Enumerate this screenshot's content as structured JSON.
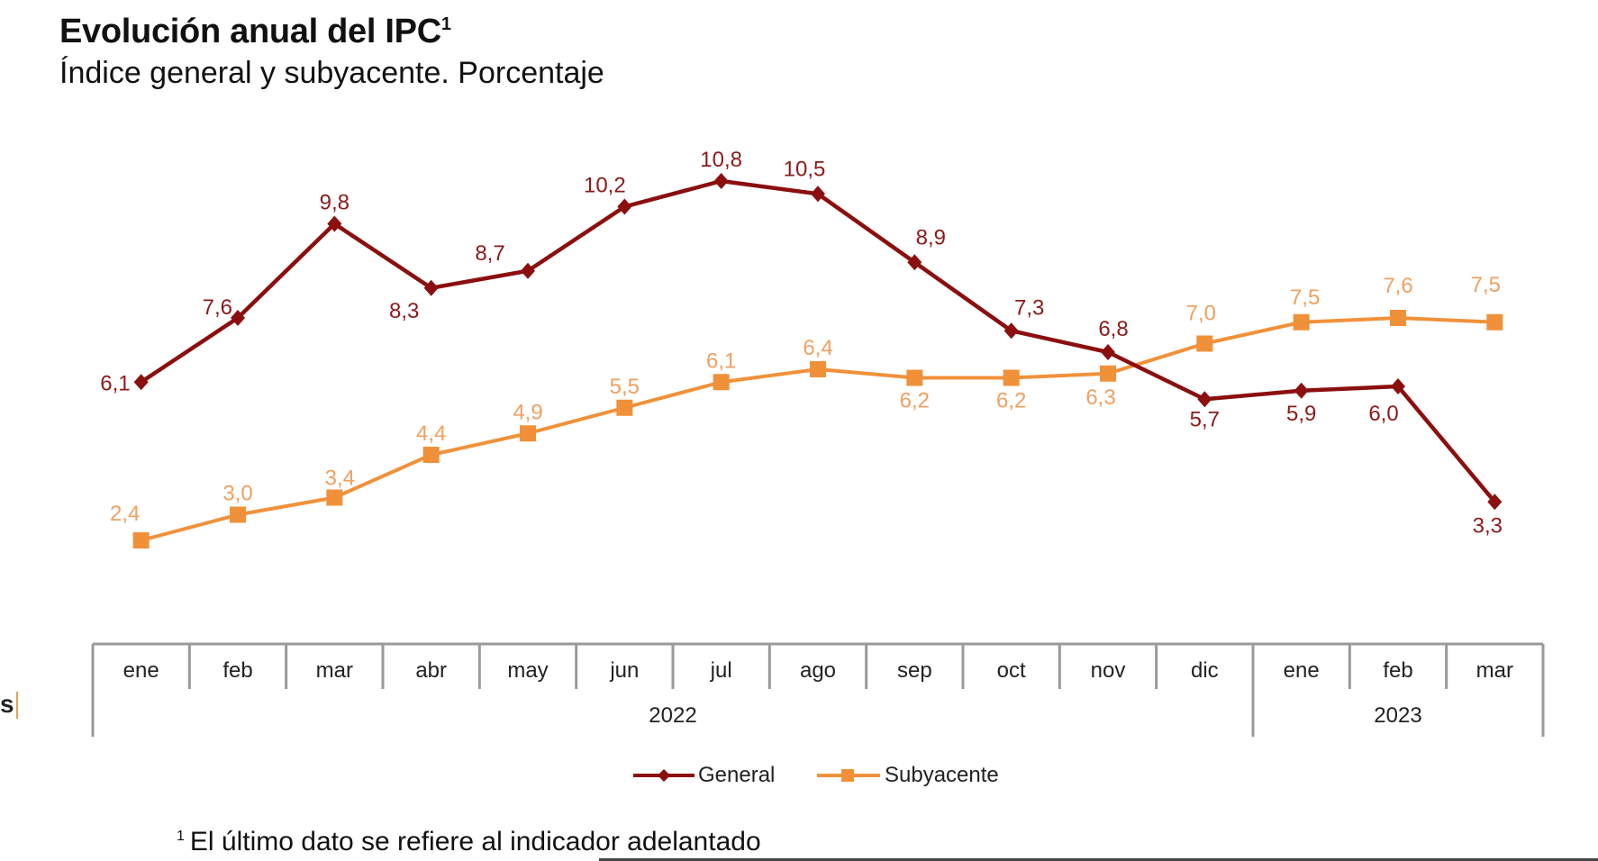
{
  "header": {
    "title": "Evolución anual del IPC",
    "title_sup": "1",
    "subtitle": "Índice general y subyacente. Porcentaje"
  },
  "edge_fragment": "s",
  "footnote": {
    "marker": "1",
    "text": "El último dato se refiere al indicador adelantado"
  },
  "colors": {
    "general": "#8B0F0F",
    "subyacente": "#F0913A",
    "general_label": "#8B1A1A",
    "subyacente_label": "#F0A060",
    "axis": "#9a9a9a"
  },
  "chart_data": {
    "type": "line",
    "title": "Evolución anual del IPC",
    "subtitle": "Índice general y subyacente. Porcentaje",
    "xlabel": "",
    "ylabel": "",
    "ylim": [
      0,
      11
    ],
    "grid": false,
    "legend_position": "bottom-center",
    "categories": [
      "ene",
      "feb",
      "mar",
      "abr",
      "may",
      "jun",
      "jul",
      "ago",
      "sep",
      "oct",
      "nov",
      "dic",
      "ene",
      "feb",
      "mar"
    ],
    "year_groups": [
      {
        "label": "2022",
        "count": 12
      },
      {
        "label": "2023",
        "count": 3
      }
    ],
    "series": [
      {
        "name": "General",
        "marker": "diamond",
        "values": [
          6.1,
          7.6,
          9.8,
          8.3,
          8.7,
          10.2,
          10.8,
          10.5,
          8.9,
          7.3,
          6.8,
          5.7,
          5.9,
          6.0,
          3.3
        ],
        "labels": [
          "6,1",
          "7,6",
          "9,8",
          "8,3",
          "8,7",
          "10,2",
          "10,8",
          "10,5",
          "8,9",
          "7,3",
          "6,8",
          "5,7",
          "5,9",
          "6,0",
          "3,3"
        ],
        "label_pos": [
          "left",
          "left",
          "above",
          "below",
          "above",
          "above",
          "above",
          "above",
          "above",
          "above",
          "above",
          "below",
          "below",
          "below",
          "below"
        ]
      },
      {
        "name": "Subyacente",
        "marker": "square",
        "values": [
          2.4,
          3.0,
          3.4,
          4.4,
          4.9,
          5.5,
          6.1,
          6.4,
          6.2,
          6.2,
          6.3,
          7.0,
          7.5,
          7.6,
          7.5
        ],
        "labels": [
          "2,4",
          "3,0",
          "3,4",
          "4,4",
          "4,9",
          "5,5",
          "6,1",
          "6,4",
          "6,2",
          "6,2",
          "6,3",
          "7,0",
          "7,5",
          "7,6",
          "7,5"
        ],
        "label_pos": [
          "above",
          "above",
          "above",
          "above",
          "above",
          "above",
          "above",
          "above",
          "below",
          "below",
          "below",
          "above",
          "above",
          "above",
          "above"
        ]
      }
    ]
  }
}
